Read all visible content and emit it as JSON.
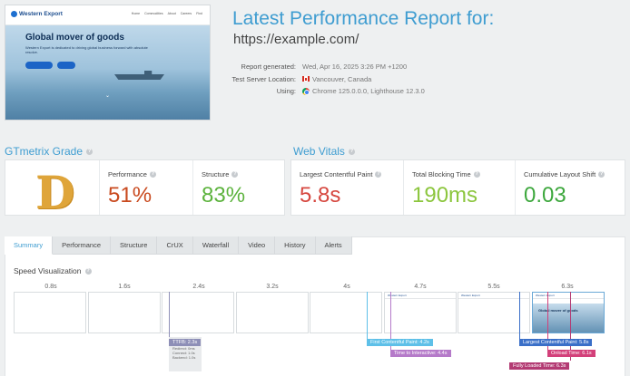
{
  "header": {
    "title": "Latest Performance Report for:",
    "url": "https://example.com/",
    "meta": [
      {
        "label": "Report generated:",
        "value": "Wed, Apr 16, 2025 3:26 PM +1200",
        "icon": ""
      },
      {
        "label": "Test Server Location:",
        "value": "Vancouver, Canada",
        "icon": "canada-flag-icon"
      },
      {
        "label": "Using:",
        "value": "Chrome 125.0.0.0, Lighthouse 12.3.0",
        "icon": "chrome-icon"
      }
    ]
  },
  "screenshot": {
    "logo": "Western Export",
    "nav": [
      "Home",
      "Commodities",
      "About",
      "Careers",
      "Find"
    ],
    "hero_title": "Global mover of goods",
    "hero_sub": "Western Export is dedicated to driving global business forward with absolute resolve."
  },
  "grade": {
    "section_title": "GTmetrix Grade",
    "letter": "D",
    "performance_label": "Performance",
    "performance_value": "51%",
    "structure_label": "Structure",
    "structure_value": "83%"
  },
  "vitals": {
    "section_title": "Web Vitals",
    "lcp_label": "Largest Contentful Paint",
    "lcp_value": "5.8s",
    "tbt_label": "Total Blocking Time",
    "tbt_value": "190ms",
    "cls_label": "Cumulative Layout Shift",
    "cls_value": "0.03"
  },
  "tabs": [
    "Summary",
    "Performance",
    "Structure",
    "CrUX",
    "Waterfall",
    "Video",
    "History",
    "Alerts"
  ],
  "speed": {
    "title": "Speed Visualization",
    "ticks": [
      "0.8s",
      "1.6s",
      "2.4s",
      "3.2s",
      "4s",
      "4.7s",
      "5.5s",
      "6.3s"
    ],
    "ttfb_label": "TTFB: 2.3s",
    "ttfb_details": [
      "Redirect: 0ms",
      "Connect: 1.0s",
      "Backend: 1.0s"
    ],
    "markers": {
      "fcp": "First Contentful Paint: 4.2s",
      "tti": "Time to Interactive: 4.4s",
      "lcp": "Largest Contentful Paint: 5.8s",
      "onload": "Onload Time: 6.1s",
      "fully": "Fully Loaded Time: 6.3s"
    },
    "frame_hero": "Global mover of goods"
  },
  "colors": {
    "accent": "#3f9dd1",
    "grade_d": "#dfa53a",
    "performance": "#c94a1f",
    "structure": "#5cb33d",
    "lcp": "#d6473f",
    "tbt": "#8cc63e",
    "cls": "#3ea83e"
  }
}
